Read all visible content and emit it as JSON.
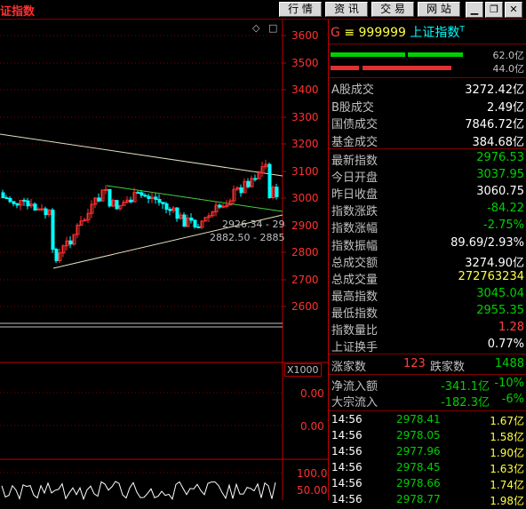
{
  "title": "证指数",
  "toolbar": [
    "行 情",
    "资 讯",
    "交 易",
    "网 站"
  ],
  "window_controls": [
    "minimize-icon",
    "restore-icon",
    "close-icon"
  ],
  "chart": {
    "y_ticks": [
      "3600",
      "3500",
      "3400",
      "3300",
      "3200",
      "3100",
      "3000",
      "2900",
      "2800",
      "2700",
      "2600"
    ],
    "annotation_1": "2926.34 - 29",
    "annotation_2": "2882.50 - 2885",
    "multiplier": "X1000",
    "sub_ticks": [
      "0.00",
      "0.00"
    ],
    "osc_ticks": [
      "100.0",
      "50.00"
    ]
  },
  "chart_data": {
    "type": "candlestick",
    "note": "Shanghai Composite index candles",
    "ylim": [
      2550,
      3650
    ],
    "trendlines": "channel around 2900-3100"
  },
  "header": {
    "g": "G",
    "eq": "≡",
    "code": "999999",
    "name": "上证指数",
    "sup": "T"
  },
  "bars": {
    "top_value": "62.0亿",
    "bottom_value": "44.0亿"
  },
  "stats_a": [
    {
      "label": "A股成交",
      "value": "3272.42亿",
      "color": "white"
    },
    {
      "label": "B股成交",
      "value": "2.49亿",
      "color": "white"
    },
    {
      "label": "国债成交",
      "value": "7846.72亿",
      "color": "white"
    },
    {
      "label": "基金成交",
      "value": "384.68亿",
      "color": "white"
    }
  ],
  "stats_b": [
    {
      "label": "最新指数",
      "value": "2976.53",
      "color": "green"
    },
    {
      "label": "今日开盘",
      "value": "3037.95",
      "color": "green"
    },
    {
      "label": "昨日收盘",
      "value": "3060.75",
      "color": "white"
    },
    {
      "label": "指数涨跌",
      "value": "-84.22",
      "color": "green"
    },
    {
      "label": "指数涨幅",
      "value": "-2.75%",
      "color": "green"
    },
    {
      "label": "指数振幅",
      "value": "89.69/2.93%",
      "color": "white"
    },
    {
      "label": "总成交额",
      "value": "3274.90亿",
      "color": "white"
    },
    {
      "label": "总成交量",
      "value": "272763234",
      "color": "yellow"
    },
    {
      "label": "最高指数",
      "value": "3045.04",
      "color": "green"
    },
    {
      "label": "最低指数",
      "value": "2955.35",
      "color": "green"
    },
    {
      "label": "指数量比",
      "value": "1.28",
      "color": "red"
    },
    {
      "label": "上证换手",
      "value": "0.77%",
      "color": "white"
    }
  ],
  "updown": {
    "up_label": "涨家数",
    "up_value": "123",
    "down_label": "跌家数",
    "down_value": "1488"
  },
  "flows": [
    {
      "label": "净流入额",
      "value": "-341.1亿",
      "pct": "-10%"
    },
    {
      "label": "大宗流入",
      "value": "-182.3亿",
      "pct": "-6%"
    }
  ],
  "ticks": [
    {
      "time": "14:56",
      "price": "2978.41",
      "vol": "1.67亿"
    },
    {
      "time": "14:56",
      "price": "2978.05",
      "vol": "1.58亿"
    },
    {
      "time": "14:56",
      "price": "2977.96",
      "vol": "1.90亿"
    },
    {
      "time": "14:56",
      "price": "2978.45",
      "vol": "1.63亿"
    },
    {
      "time": "14:56",
      "price": "2978.66",
      "vol": "1.74亿"
    },
    {
      "time": "14:56",
      "price": "2978.77",
      "vol": "1.98亿"
    }
  ]
}
